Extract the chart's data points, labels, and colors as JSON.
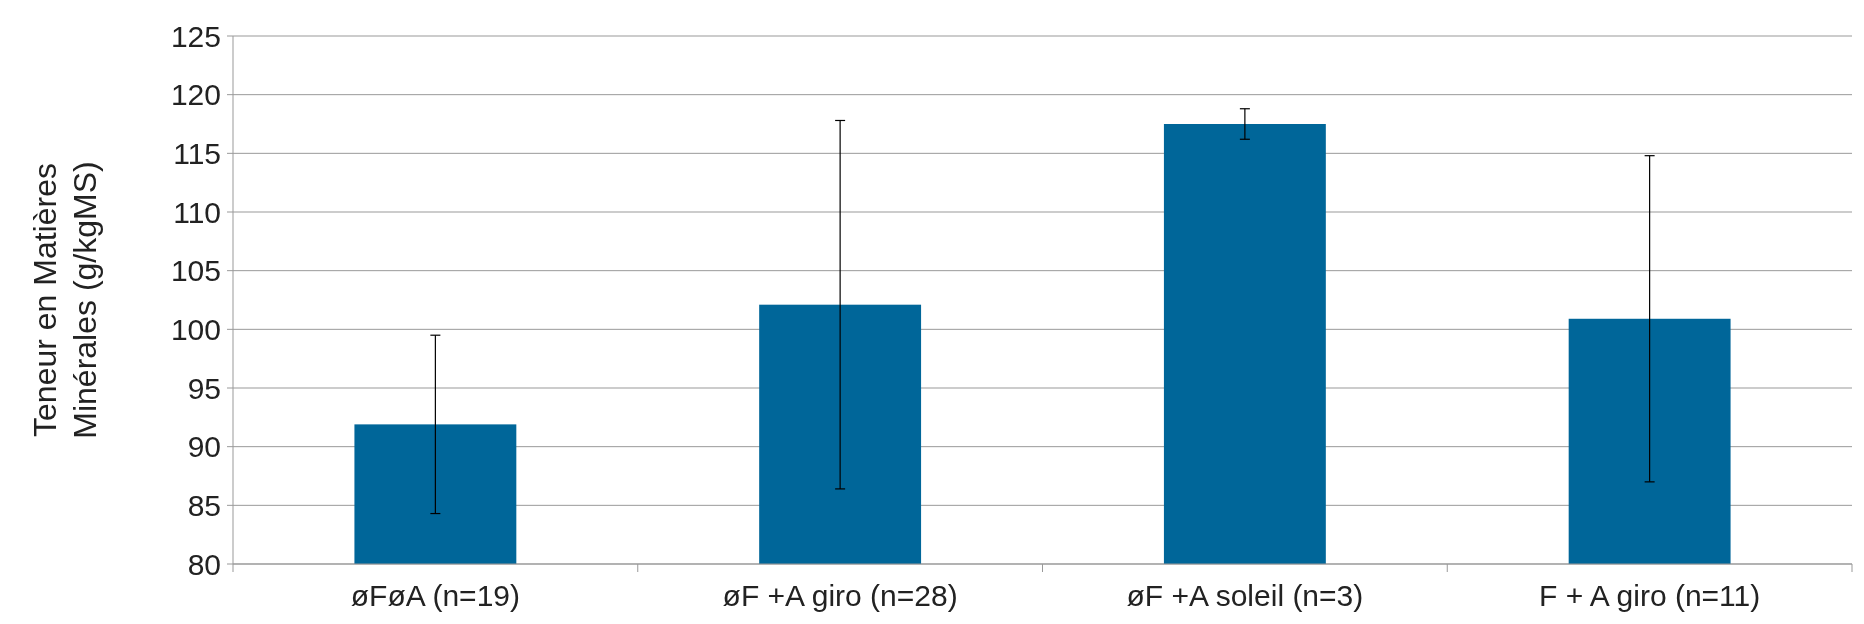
{
  "chart_data": {
    "type": "bar",
    "ylabel": "Teneur en Matières Minérales (g/kgMS)",
    "categories": [
      "øFøA (n=19)",
      "øF +A giro (n=28)",
      "øF +A soleil (n=3)",
      "F + A giro (n=11)"
    ],
    "values": [
      91.9,
      102.1,
      117.5,
      100.9
    ],
    "errors": [
      7.6,
      15.7,
      1.3,
      13.9
    ],
    "color": "#006699",
    "ylim": [
      80,
      125
    ],
    "yticks": [
      80,
      85,
      90,
      95,
      100,
      105,
      110,
      115,
      120,
      125
    ],
    "grid": "y"
  }
}
